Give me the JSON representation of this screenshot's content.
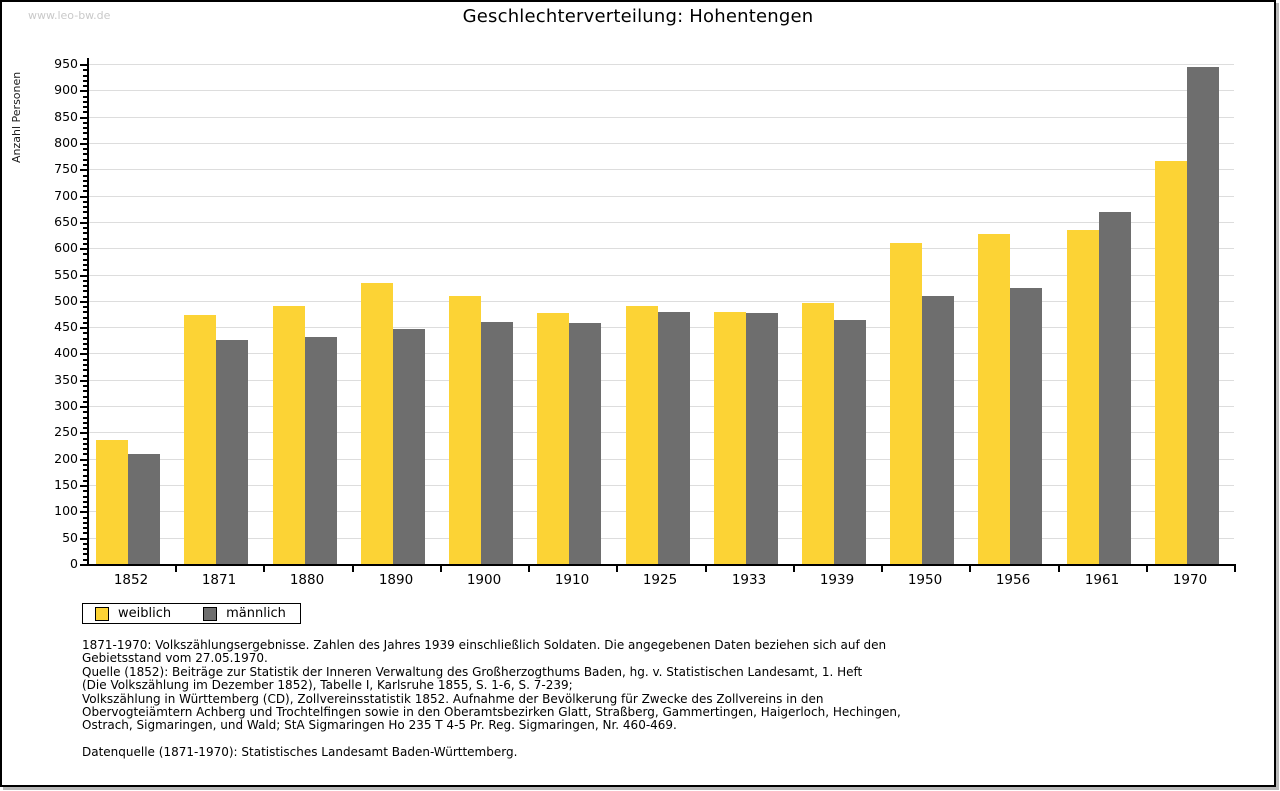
{
  "page": {
    "watermark": "www.leo-bw.de"
  },
  "chart_data": {
    "type": "bar",
    "title": "Geschlechterverteilung: Hohentengen",
    "xlabel": "",
    "ylabel": "Anzahl Personen",
    "categories": [
      "1852",
      "1871",
      "1880",
      "1890",
      "1900",
      "1910",
      "1925",
      "1933",
      "1939",
      "1950",
      "1956",
      "1961",
      "1970"
    ],
    "series": [
      {
        "name": "weiblich",
        "color": "#FCD335",
        "values": [
          235,
          473,
          491,
          533,
          509,
          476,
          491,
          479,
          496,
          609,
          627,
          635,
          766
        ]
      },
      {
        "name": "männlich",
        "color": "#6E6E6E",
        "values": [
          209,
          426,
          432,
          447,
          459,
          458,
          479,
          477,
          464,
          509,
          524,
          668,
          944
        ]
      }
    ],
    "ylim": [
      0,
      950
    ],
    "ytick_step": 50,
    "minor_tick_step": 10,
    "grid": true,
    "gridline_color": "#dddddd",
    "legend_position": "bottom-left"
  },
  "footnotes": {
    "lines": [
      "1871-1970: Volkszählungsergebnisse. Zahlen des Jahres 1939 einschließlich Soldaten. Die angegebenen Daten beziehen sich auf den",
      "Gebietsstand vom 27.05.1970.",
      "Quelle (1852): Beiträge zur Statistik der Inneren Verwaltung des Großherzogthums Baden, hg. v. Statistischen Landesamt, 1. Heft",
      "(Die Volkszählung im Dezember 1852), Tabelle I, Karlsruhe 1855, S. 1-6, S. 7-239;",
      "Volkszählung in Württemberg (CD), Zollvereinsstatistik 1852. Aufnahme der Bevölkerung für Zwecke des Zollvereins in den",
      "Obervogteiämtern Achberg und Trochtelfingen sowie in den Oberamtsbezirken Glatt, Straßberg, Gammertingen, Haigerloch, Hechingen,",
      "Ostrach, Sigmaringen, und Wald; StA Sigmaringen Ho 235 T 4-5 Pr. Reg. Sigmaringen, Nr. 460-469."
    ],
    "source": "Datenquelle (1871-1970): Statistisches Landesamt Baden-Württemberg."
  }
}
